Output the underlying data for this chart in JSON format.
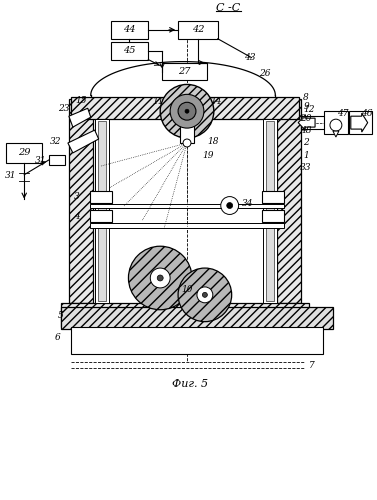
{
  "bg_color": "#ffffff",
  "lc": "#000000",
  "gray": "#aaaaaa",
  "hatch_gray": "#888888"
}
